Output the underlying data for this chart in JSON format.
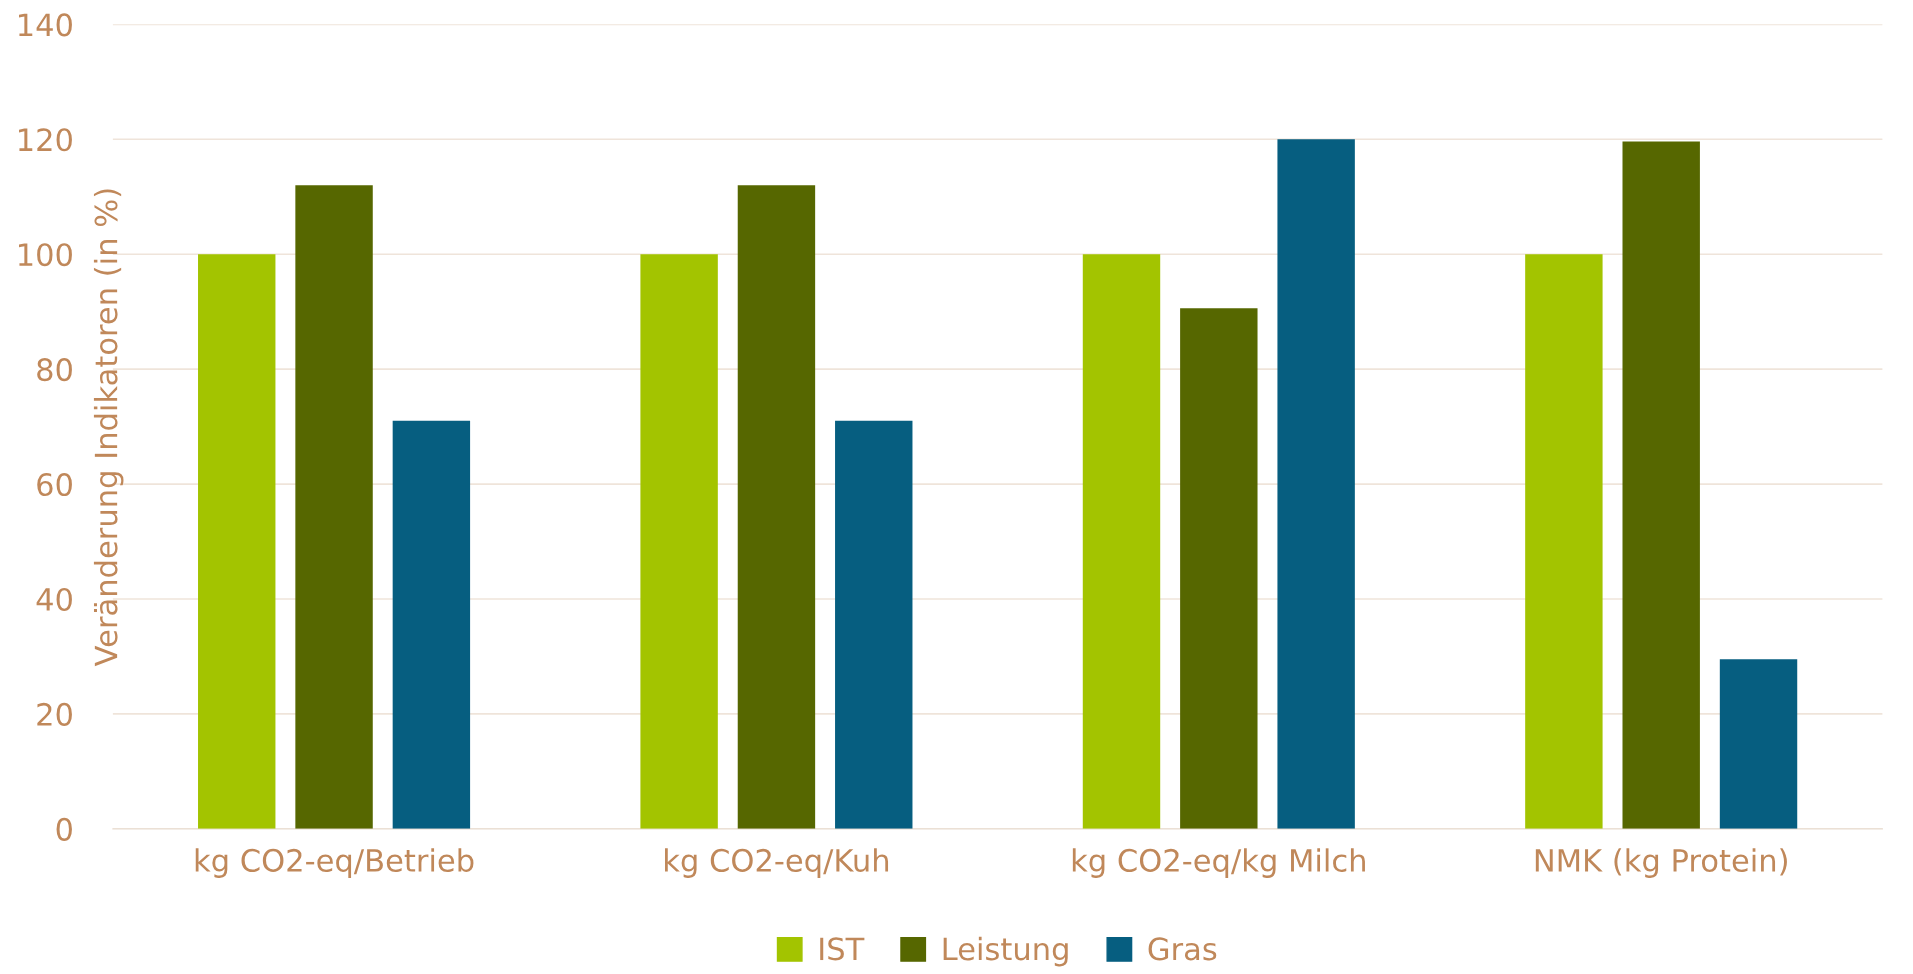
{
  "chart_data": {
    "type": "bar",
    "ylabel": "Veränderung Indikatoren (in %)",
    "categories": [
      "kg CO2-eq/Betrieb",
      "kg CO2-eq/Kuh",
      "kg CO2-eq/kg Milch",
      "NMK (kg Protein)"
    ],
    "series": [
      {
        "name": "IST",
        "color": "#a3c400",
        "values": [
          100,
          100,
          100,
          100
        ]
      },
      {
        "name": "Leistung",
        "color": "#566700",
        "values": [
          112,
          112,
          90.6,
          119.6
        ]
      },
      {
        "name": "Gras",
        "color": "#065e80",
        "values": [
          71,
          71,
          120,
          29.5
        ]
      }
    ],
    "ylim": [
      0,
      140
    ],
    "yticks": [
      0,
      20,
      40,
      60,
      80,
      100,
      120,
      140
    ],
    "grid": "y",
    "legend": "bottom"
  }
}
